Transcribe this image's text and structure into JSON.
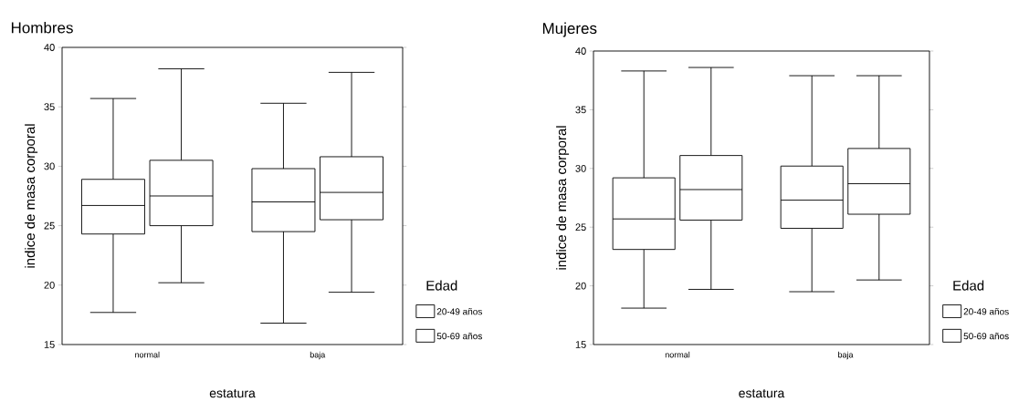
{
  "chart_data": [
    {
      "type": "box",
      "title": "Hombres",
      "xlabel": "estatura",
      "ylabel": "indice de masa corporal",
      "legend_title": "Edad",
      "legend": "right",
      "grid": false,
      "categories": [
        "normal",
        "baja"
      ],
      "ylim": [
        15,
        40
      ],
      "yticks": [
        15,
        20,
        25,
        30,
        35,
        40
      ],
      "series": [
        {
          "name": "20-49 años",
          "color": "#ffffff",
          "boxes": [
            {
              "low": 17.7,
              "q1": 24.3,
              "median": 26.7,
              "q3": 28.9,
              "high": 35.7
            },
            {
              "low": 16.8,
              "q1": 24.5,
              "median": 27.0,
              "q3": 29.8,
              "high": 35.3
            }
          ]
        },
        {
          "name": "50-69 años",
          "color": "#ffffff",
          "boxes": [
            {
              "low": 20.2,
              "q1": 25.0,
              "median": 27.5,
              "q3": 30.5,
              "high": 38.2
            },
            {
              "low": 19.4,
              "q1": 25.5,
              "median": 27.8,
              "q3": 30.8,
              "high": 37.9
            }
          ]
        }
      ]
    },
    {
      "type": "box",
      "title": "Mujeres",
      "xlabel": "estatura",
      "ylabel": "indice de masa corporal",
      "legend_title": "Edad",
      "legend": "right",
      "grid": false,
      "categories": [
        "normal",
        "baja"
      ],
      "ylim": [
        15,
        40
      ],
      "yticks": [
        15,
        20,
        25,
        30,
        35,
        40
      ],
      "series": [
        {
          "name": "20-49 años",
          "color": "#ffffff",
          "boxes": [
            {
              "low": 18.1,
              "q1": 23.1,
              "median": 25.7,
              "q3": 29.2,
              "high": 38.3
            },
            {
              "low": 19.5,
              "q1": 24.9,
              "median": 27.3,
              "q3": 30.2,
              "high": 37.9
            }
          ]
        },
        {
          "name": "50-69 años",
          "color": "#ffffff",
          "boxes": [
            {
              "low": 19.7,
              "q1": 25.6,
              "median": 28.2,
              "q3": 31.1,
              "high": 38.6
            },
            {
              "low": 20.5,
              "q1": 26.1,
              "median": 28.7,
              "q3": 31.7,
              "high": 37.9
            }
          ]
        }
      ]
    }
  ]
}
